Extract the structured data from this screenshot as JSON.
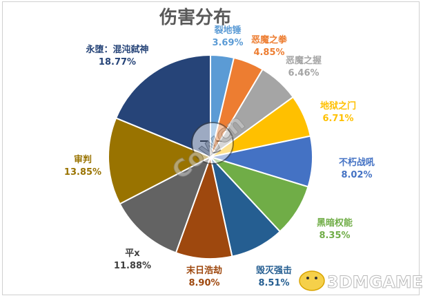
{
  "chart_data": {
    "type": "pie",
    "title": "伤害分布",
    "slices": [
      {
        "name": "裂地锤",
        "value": 3.69,
        "label": "3.69%",
        "color": "#5B9BD5"
      },
      {
        "name": "恶魔之拳",
        "value": 4.85,
        "label": "4.85%",
        "color": "#ED7D31"
      },
      {
        "name": "恶魔之握",
        "value": 6.46,
        "label": "6.46%",
        "color": "#A5A5A5"
      },
      {
        "name": "地狱之门",
        "value": 6.71,
        "label": "6.71%",
        "color": "#FFC000"
      },
      {
        "name": "不朽战吼",
        "value": 8.02,
        "label": "8.02%",
        "color": "#4472C4"
      },
      {
        "name": "黑暗权能",
        "value": 8.35,
        "label": "8.35%",
        "color": "#70AD47"
      },
      {
        "name": "毁灭强击",
        "value": 8.51,
        "label": "8.51%",
        "color": "#255E91"
      },
      {
        "name": "末日浩劫",
        "value": 8.9,
        "label": "8.90%",
        "color": "#9E480E"
      },
      {
        "name": "平x",
        "value": 11.88,
        "label": "11.88%",
        "color": "#636363"
      },
      {
        "name": "审判",
        "value": 13.85,
        "label": "13.85%",
        "color": "#997300"
      },
      {
        "name": "永堕：混沌弑神",
        "value": 18.77,
        "label": "18.77%",
        "color": "#264478"
      }
    ],
    "start_angle": "12 o'clock",
    "direction": "clockwise",
    "legend": "none (data labels beside slices)"
  },
  "watermark": {
    "left_text": "Cowcn",
    "right_text": "3DMGAME"
  }
}
